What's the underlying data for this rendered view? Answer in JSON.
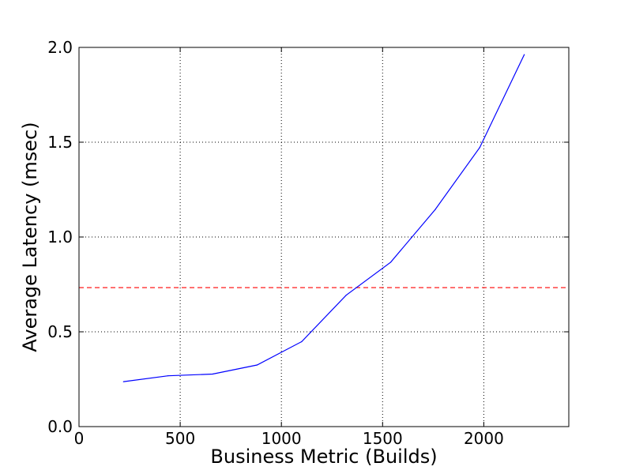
{
  "chart_data": {
    "type": "line",
    "xlabel": "Business Metric (Builds)",
    "ylabel": "Average Latency (msec)",
    "xlim": [
      0,
      2420
    ],
    "ylim": [
      0.0,
      2.0
    ],
    "xticks": [
      0,
      500,
      1000,
      1500,
      2000
    ],
    "xtick_labels": [
      "0",
      "500",
      "1000",
      "1500",
      "2000"
    ],
    "yticks": [
      0.0,
      0.5,
      1.0,
      1.5,
      2.0
    ],
    "ytick_labels": [
      "0.0",
      "0.5",
      "1.0",
      "1.5",
      "2.0"
    ],
    "grid": true,
    "series": [
      {
        "color": "#0000ff",
        "style": "solid",
        "x": [
          220,
          440,
          660,
          880,
          1100,
          1320,
          1540,
          1760,
          1980,
          2200
        ],
        "y": [
          0.237,
          0.268,
          0.277,
          0.325,
          0.448,
          0.693,
          0.867,
          1.145,
          1.472,
          1.962
        ]
      }
    ],
    "reference_lines": [
      {
        "orientation": "horizontal",
        "y": 0.733,
        "color": "#ff0000",
        "style": "dashed"
      }
    ]
  }
}
